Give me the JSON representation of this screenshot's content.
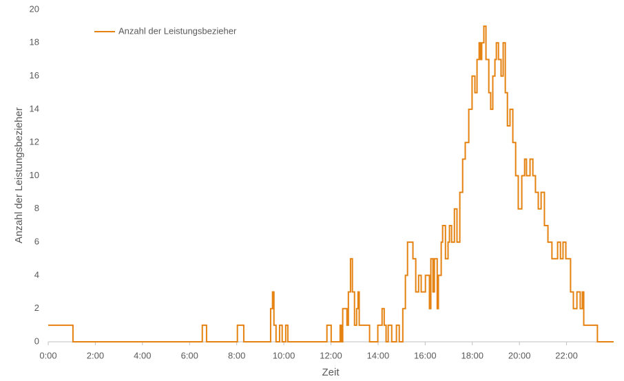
{
  "chart_data": {
    "type": "line",
    "x_label": "Zeit",
    "y_label": "Anzahl der Leistungsbezieher",
    "xlim": [
      0,
      24
    ],
    "ylim": [
      0,
      20
    ],
    "xticks": [
      {
        "value": 0,
        "label": "0:00"
      },
      {
        "value": 2,
        "label": "2:00"
      },
      {
        "value": 4,
        "label": "4:00"
      },
      {
        "value": 6,
        "label": "6:00"
      },
      {
        "value": 8,
        "label": "8:00"
      },
      {
        "value": 10,
        "label": "10:00"
      },
      {
        "value": 12,
        "label": "12:00"
      },
      {
        "value": 14,
        "label": "14:00"
      },
      {
        "value": 16,
        "label": "16:00"
      },
      {
        "value": 18,
        "label": "18:00"
      },
      {
        "value": 20,
        "label": "20:00"
      },
      {
        "value": 22,
        "label": "22:00"
      }
    ],
    "yticks": [
      0,
      2,
      4,
      6,
      8,
      10,
      12,
      14,
      16,
      18,
      20
    ],
    "legend": "top-left",
    "x": [
      0,
      1.05,
      1.05,
      6.54,
      6.54,
      6.72,
      6.72,
      8.03,
      8.03,
      8.3,
      8.3,
      9.44,
      9.44,
      9.52,
      9.52,
      9.58,
      9.58,
      9.67,
      9.67,
      9.82,
      9.82,
      9.93,
      9.93,
      10.08,
      10.08,
      10.17,
      10.17,
      11.83,
      11.83,
      12.01,
      12.01,
      12.39,
      12.39,
      12.45,
      12.45,
      12.5,
      12.5,
      12.68,
      12.68,
      12.74,
      12.74,
      12.83,
      12.83,
      12.91,
      12.91,
      13.0,
      13.0,
      13.09,
      13.09,
      13.15,
      13.15,
      13.2,
      13.2,
      13.64,
      13.64,
      13.99,
      13.99,
      14.17,
      14.17,
      14.26,
      14.26,
      14.34,
      14.34,
      14.43,
      14.43,
      14.58,
      14.58,
      14.78,
      14.78,
      14.9,
      14.9,
      15.05,
      15.05,
      15.16,
      15.16,
      15.25,
      15.25,
      15.48,
      15.48,
      15.6,
      15.6,
      15.72,
      15.72,
      15.83,
      15.83,
      16.01,
      16.01,
      16.18,
      16.18,
      16.24,
      16.24,
      16.33,
      16.33,
      16.39,
      16.39,
      16.51,
      16.51,
      16.56,
      16.56,
      16.68,
      16.68,
      16.74,
      16.74,
      16.86,
      16.86,
      16.97,
      16.97,
      17.03,
      17.03,
      17.12,
      17.12,
      17.24,
      17.24,
      17.35,
      17.35,
      17.47,
      17.47,
      17.59,
      17.59,
      17.7,
      17.7,
      17.85,
      17.85,
      17.99,
      17.99,
      18.11,
      18.11,
      18.2,
      18.2,
      18.29,
      18.29,
      18.35,
      18.35,
      18.4,
      18.4,
      18.49,
      18.49,
      18.58,
      18.58,
      18.7,
      18.7,
      18.78,
      18.78,
      18.87,
      18.87,
      18.96,
      18.96,
      19.02,
      19.02,
      19.11,
      19.11,
      19.22,
      19.22,
      19.31,
      19.31,
      19.4,
      19.4,
      19.49,
      19.49,
      19.6,
      19.6,
      19.72,
      19.72,
      19.84,
      19.84,
      19.95,
      19.95,
      20.1,
      20.1,
      20.22,
      20.22,
      20.3,
      20.3,
      20.45,
      20.45,
      20.57,
      20.57,
      20.68,
      20.68,
      20.8,
      20.8,
      20.92,
      20.92,
      21.06,
      21.06,
      21.21,
      21.21,
      21.38,
      21.38,
      21.62,
      21.62,
      21.74,
      21.74,
      21.85,
      21.85,
      21.97,
      21.97,
      22.17,
      22.17,
      22.29,
      22.29,
      22.44,
      22.44,
      22.58,
      22.58,
      22.67,
      22.67,
      22.73,
      22.73,
      23.31,
      23.31,
      24
    ],
    "series": [
      {
        "name": "Anzahl der Leistungsbezieher",
        "color": "#e4810f",
        "values": [
          1,
          1,
          0,
          0,
          1,
          1,
          0,
          0,
          1,
          1,
          0,
          0,
          2,
          2,
          3,
          3,
          1,
          1,
          0,
          0,
          1,
          1,
          0,
          0,
          1,
          1,
          0,
          0,
          1,
          1,
          0,
          0,
          1,
          1,
          0,
          0,
          2,
          2,
          1,
          1,
          3,
          3,
          5,
          5,
          3,
          3,
          1,
          1,
          2,
          2,
          3,
          3,
          1,
          1,
          0,
          0,
          1,
          1,
          2,
          2,
          1,
          1,
          0,
          0,
          1,
          1,
          0,
          0,
          1,
          1,
          0,
          0,
          2,
          2,
          4,
          4,
          6,
          6,
          5,
          5,
          3,
          3,
          4,
          4,
          3,
          3,
          4,
          4,
          2,
          2,
          5,
          5,
          3,
          3,
          5,
          5,
          2,
          2,
          4,
          4,
          6,
          6,
          7,
          7,
          5,
          5,
          6,
          6,
          7,
          7,
          6,
          6,
          8,
          8,
          6,
          6,
          9,
          9,
          11,
          11,
          12,
          12,
          14,
          14,
          16,
          16,
          15,
          15,
          17,
          17,
          18,
          18,
          17,
          17,
          18,
          18,
          19,
          19,
          17,
          17,
          15,
          15,
          14,
          14,
          16,
          16,
          17,
          17,
          18,
          18,
          17,
          17,
          16,
          16,
          18,
          18,
          15,
          15,
          13,
          13,
          14,
          14,
          12,
          12,
          10,
          10,
          8,
          8,
          10,
          10,
          11,
          11,
          10,
          10,
          11,
          11,
          10,
          10,
          9,
          9,
          8,
          8,
          9,
          9,
          7,
          7,
          6,
          6,
          5,
          5,
          6,
          6,
          5,
          5,
          6,
          6,
          5,
          5,
          3,
          3,
          2,
          2,
          3,
          3,
          2,
          2,
          3,
          3,
          1,
          1,
          0,
          0
        ]
      }
    ]
  }
}
